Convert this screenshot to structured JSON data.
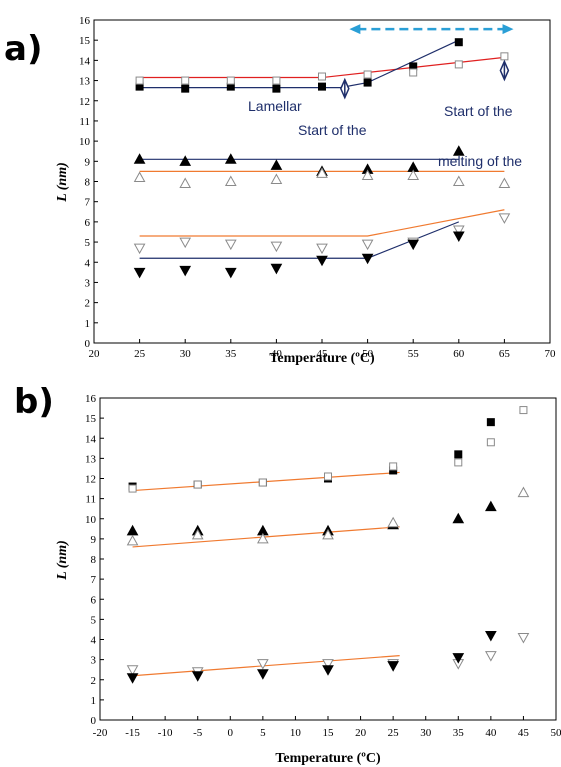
{
  "chart_data": [
    {
      "panel": "a)",
      "type": "scatter",
      "xlabel": "Temperature (ºC)",
      "ylabel": "L (nm)",
      "xlim": [
        20,
        70
      ],
      "ylim": [
        0,
        16
      ],
      "xticks": [
        20,
        25,
        30,
        35,
        40,
        45,
        50,
        55,
        60,
        65,
        70
      ],
      "yticks": [
        0,
        1,
        2,
        3,
        4,
        5,
        6,
        7,
        8,
        9,
        10,
        11,
        12,
        13,
        14,
        15,
        16
      ],
      "annotations": [
        "Lamellar",
        "Start of the",
        "Start of the",
        "melting of the"
      ],
      "series": [
        {
          "marker": "square-filled",
          "x": [
            25,
            30,
            35,
            40,
            45,
            50,
            55,
            60
          ],
          "y": [
            12.7,
            12.6,
            12.7,
            12.6,
            12.7,
            12.9,
            13.7,
            14.9
          ]
        },
        {
          "marker": "square-open",
          "x": [
            25,
            30,
            35,
            40,
            45,
            50,
            55,
            60,
            65
          ],
          "y": [
            13.0,
            13.0,
            13.0,
            13.0,
            13.2,
            13.3,
            13.4,
            13.8,
            14.2
          ]
        },
        {
          "marker": "triangle-up-filled",
          "x": [
            25,
            30,
            35,
            40,
            45,
            50,
            55,
            60
          ],
          "y": [
            9.1,
            9.0,
            9.1,
            8.8,
            8.5,
            8.6,
            8.7,
            9.5
          ]
        },
        {
          "marker": "triangle-up-open",
          "x": [
            25,
            30,
            35,
            40,
            45,
            50,
            55,
            60,
            65
          ],
          "y": [
            8.2,
            7.9,
            8.0,
            8.1,
            8.4,
            8.3,
            8.3,
            8.0,
            7.9
          ]
        },
        {
          "marker": "triangle-down-open",
          "x": [
            25,
            30,
            35,
            40,
            45,
            50,
            55,
            60,
            65
          ],
          "y": [
            4.7,
            5.0,
            4.9,
            4.8,
            4.7,
            4.9,
            5.0,
            5.6,
            6.2
          ]
        },
        {
          "marker": "triangle-down-filled",
          "x": [
            25,
            30,
            35,
            40,
            45,
            50,
            55,
            60
          ],
          "y": [
            3.5,
            3.6,
            3.5,
            3.7,
            4.1,
            4.2,
            4.9,
            5.3
          ]
        }
      ],
      "fit_lines": [
        {
          "color": "#e02020",
          "points": [
            [
              25,
              13.15
            ],
            [
              45,
              13.15
            ],
            [
              65,
              14.15
            ]
          ]
        },
        {
          "color": "#1f2f6b",
          "points": [
            [
              25,
              12.65
            ],
            [
              47,
              12.65
            ],
            [
              50,
              12.9
            ],
            [
              60,
              15.0
            ]
          ]
        },
        {
          "color": "#1f2f6b",
          "points": [
            [
              25,
              9.1
            ],
            [
              60,
              9.1
            ]
          ]
        },
        {
          "color": "#f07a30",
          "points": [
            [
              25,
              8.5
            ],
            [
              65,
              8.5
            ]
          ]
        },
        {
          "color": "#f07a30",
          "points": [
            [
              25,
              5.3
            ],
            [
              50,
              5.3
            ],
            [
              65,
              6.6
            ]
          ]
        },
        {
          "color": "#1f2f6b",
          "points": [
            [
              25,
              4.2
            ],
            [
              50,
              4.2
            ],
            [
              60,
              6.0
            ]
          ]
        }
      ],
      "diamond_markers": [
        [
          47.5,
          12.6
        ],
        [
          65,
          13.5
        ]
      ],
      "dashed_arrow": {
        "color": "#2a9fd6",
        "from": 48,
        "to": 66,
        "y": 15.55
      }
    },
    {
      "panel": "b)",
      "type": "scatter",
      "xlabel": "Temperature (ºC)",
      "ylabel": "L (nm)",
      "xlim": [
        -20,
        50
      ],
      "ylim": [
        0,
        16
      ],
      "xticks": [
        -20,
        -15,
        -10,
        -5,
        0,
        5,
        10,
        15,
        20,
        25,
        30,
        35,
        40,
        45,
        50
      ],
      "xtick_labels": [
        "-20",
        "-15",
        "-10",
        "-5",
        "0",
        "5",
        "10",
        "15",
        "20",
        "25",
        "30",
        "35",
        "40",
        "45",
        "50"
      ],
      "yticks": [
        0,
        1,
        2,
        3,
        4,
        5,
        6,
        7,
        8,
        9,
        10,
        11,
        12,
        13,
        14,
        15,
        16
      ],
      "series": [
        {
          "marker": "square-filled",
          "x": [
            -15,
            -5,
            5,
            15,
            25,
            35,
            40
          ],
          "y": [
            11.6,
            11.7,
            11.8,
            12.0,
            12.4,
            13.2,
            14.8
          ]
        },
        {
          "marker": "square-open",
          "x": [
            -15,
            -5,
            5,
            15,
            25,
            35,
            40,
            45
          ],
          "y": [
            11.5,
            11.7,
            11.8,
            12.1,
            12.6,
            12.8,
            13.8,
            15.4
          ]
        },
        {
          "marker": "triangle-up-filled",
          "x": [
            -15,
            -5,
            5,
            15,
            25,
            35,
            40
          ],
          "y": [
            9.4,
            9.4,
            9.4,
            9.4,
            9.7,
            10.0,
            10.6
          ]
        },
        {
          "marker": "triangle-up-open",
          "x": [
            -15,
            -5,
            5,
            15,
            25,
            45
          ],
          "y": [
            8.9,
            9.2,
            9.0,
            9.2,
            9.8,
            11.3
          ]
        },
        {
          "marker": "triangle-down-open",
          "x": [
            -15,
            -5,
            5,
            15,
            25,
            35,
            40,
            45
          ],
          "y": [
            2.5,
            2.4,
            2.8,
            2.8,
            2.8,
            2.8,
            3.2,
            4.1
          ]
        },
        {
          "marker": "triangle-down-filled",
          "x": [
            -15,
            -5,
            5,
            15,
            25,
            35,
            40
          ],
          "y": [
            2.1,
            2.2,
            2.3,
            2.5,
            2.7,
            3.1,
            4.2
          ]
        }
      ],
      "fit_lines": [
        {
          "color": "#f07a30",
          "points": [
            [
              -15,
              11.4
            ],
            [
              26,
              12.3
            ]
          ]
        },
        {
          "color": "#f07a30",
          "points": [
            [
              -15,
              8.6
            ],
            [
              26,
              9.6
            ]
          ]
        },
        {
          "color": "#f07a30",
          "points": [
            [
              -15,
              2.2
            ],
            [
              26,
              3.2
            ]
          ]
        }
      ]
    }
  ]
}
